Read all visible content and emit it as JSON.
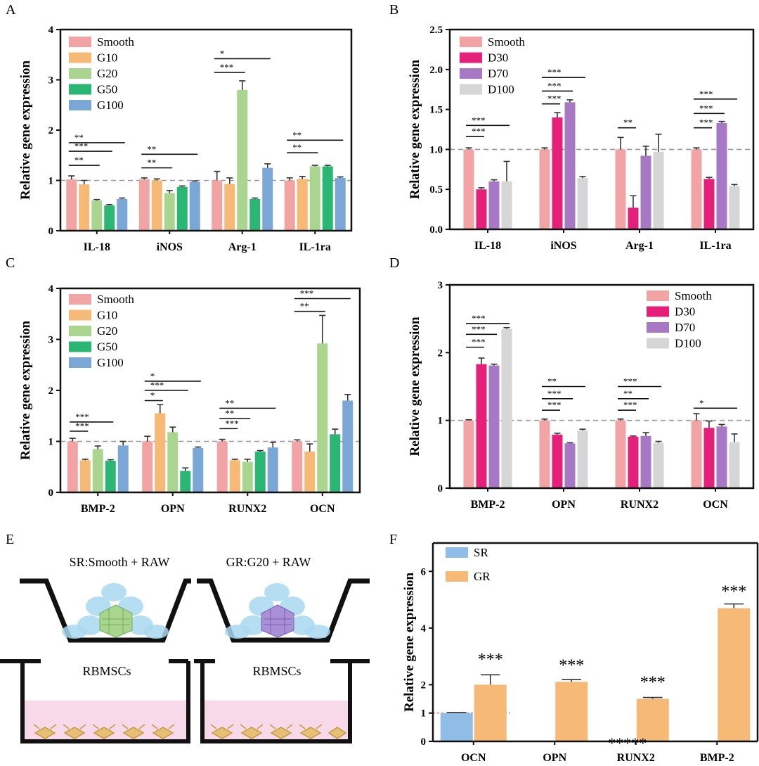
{
  "colors": {
    "smooth": "#f2a3a3",
    "g10": "#f7b976",
    "g20": "#a9d58f",
    "g50": "#2bb673",
    "g100": "#7ba7d6",
    "d30": "#e4207a",
    "d70": "#a778c3",
    "d100": "#d6d6d6",
    "sr": "#8fbde6",
    "gr": "#f7b976",
    "axis": "#111111",
    "refline": "#999999"
  },
  "schematic": {
    "panel_label": "E",
    "left_title": "SR:Smooth + RAW",
    "right_title": "GR:G20 + RAW",
    "left_cells_label": "RBMSCs",
    "right_cells_label": "RBMSCs"
  },
  "chart_data": [
    {
      "panel": "A",
      "type": "bar",
      "ylabel": "Relative gene expression",
      "ylim": [
        0,
        4
      ],
      "yticks": [
        "0",
        "1",
        "2",
        "3",
        "4"
      ],
      "reference_line": 1,
      "legend_position": "top-left",
      "categories": [
        "IL-18",
        "iNOS",
        "Arg-1",
        "IL-1ra"
      ],
      "series": [
        {
          "name": "Smooth",
          "color": "smooth",
          "values": [
            1.02,
            1.02,
            1.0,
            1.0
          ],
          "errors": [
            0.07,
            0.03,
            0.18,
            0.05
          ]
        },
        {
          "name": "G10",
          "color": "g10",
          "values": [
            0.92,
            1.0,
            0.93,
            1.03
          ],
          "errors": [
            0.08,
            0.03,
            0.12,
            0.05
          ]
        },
        {
          "name": "G20",
          "color": "g20",
          "values": [
            0.6,
            0.75,
            2.8,
            1.28
          ],
          "errors": [
            0.02,
            0.05,
            0.18,
            0.02
          ]
        },
        {
          "name": "G50",
          "color": "g50",
          "values": [
            0.5,
            0.87,
            0.63,
            1.28
          ],
          "errors": [
            0.02,
            0.02,
            0.02,
            0.02
          ]
        },
        {
          "name": "G100",
          "color": "g100",
          "values": [
            0.63,
            0.97,
            1.25,
            1.05
          ],
          "errors": [
            0.02,
            0.02,
            0.08,
            0.02
          ]
        }
      ],
      "significance": [
        {
          "cat": 0,
          "from": 0,
          "to": 2,
          "y": 1.3,
          "label": "**"
        },
        {
          "cat": 0,
          "from": 0,
          "to": 3,
          "y": 1.58,
          "label": "***"
        },
        {
          "cat": 0,
          "from": 0,
          "to": 4,
          "y": 1.75,
          "label": "**"
        },
        {
          "cat": 1,
          "from": 0,
          "to": 2,
          "y": 1.25,
          "label": "**"
        },
        {
          "cat": 1,
          "from": 0,
          "to": 4,
          "y": 1.52,
          "label": "**"
        },
        {
          "cat": 2,
          "from": 0,
          "to": 2,
          "y": 3.15,
          "label": "***"
        },
        {
          "cat": 2,
          "from": 0,
          "to": 4,
          "y": 3.42,
          "label": "*"
        },
        {
          "cat": 3,
          "from": 0,
          "to": 2,
          "y": 1.55,
          "label": "**"
        },
        {
          "cat": 3,
          "from": 0,
          "to": 4,
          "y": 1.8,
          "label": "**"
        }
      ]
    },
    {
      "panel": "B",
      "type": "bar",
      "ylabel": "Relative gene expression",
      "ylim": [
        0,
        2.5
      ],
      "yticks": [
        "0.0",
        "0.5",
        "1.0",
        "1.5",
        "2.0",
        "2.5"
      ],
      "reference_line": 1,
      "legend_position": "top-left",
      "categories": [
        "IL-18",
        "iNOS",
        "Arg-1",
        "IL-1ra"
      ],
      "series": [
        {
          "name": "Smooth",
          "color": "smooth",
          "values": [
            1.0,
            1.0,
            1.0,
            1.0
          ],
          "errors": [
            0.02,
            0.02,
            0.15,
            0.02
          ]
        },
        {
          "name": "D30",
          "color": "d30",
          "values": [
            0.5,
            1.4,
            0.27,
            0.63
          ],
          "errors": [
            0.02,
            0.06,
            0.15,
            0.02
          ]
        },
        {
          "name": "D70",
          "color": "d70",
          "values": [
            0.6,
            1.59,
            0.92,
            1.33
          ],
          "errors": [
            0.02,
            0.03,
            0.12,
            0.02
          ]
        },
        {
          "name": "D100",
          "color": "d100",
          "values": [
            0.6,
            0.64,
            0.97,
            0.54
          ],
          "errors": [
            0.25,
            0.02,
            0.22,
            0.02
          ]
        }
      ],
      "significance": [
        {
          "cat": 0,
          "from": 0,
          "to": 1,
          "y": 1.16,
          "label": "***"
        },
        {
          "cat": 0,
          "from": 0,
          "to": 3,
          "y": 1.3,
          "label": "***"
        },
        {
          "cat": 1,
          "from": 0,
          "to": 1,
          "y": 1.57,
          "label": "***"
        },
        {
          "cat": 1,
          "from": 0,
          "to": 2,
          "y": 1.73,
          "label": "***"
        },
        {
          "cat": 1,
          "from": 0,
          "to": 3,
          "y": 1.9,
          "label": "***"
        },
        {
          "cat": 2,
          "from": 0,
          "to": 1,
          "y": 1.27,
          "label": "**"
        },
        {
          "cat": 3,
          "from": 0,
          "to": 1,
          "y": 1.27,
          "label": "***"
        },
        {
          "cat": 3,
          "from": 0,
          "to": 2,
          "y": 1.45,
          "label": "***"
        },
        {
          "cat": 3,
          "from": 0,
          "to": 3,
          "y": 1.63,
          "label": "***"
        }
      ]
    },
    {
      "panel": "C",
      "type": "bar",
      "ylabel": "Relative gene expression",
      "ylim": [
        0,
        4
      ],
      "yticks": [
        "0",
        "1",
        "2",
        "3",
        "4"
      ],
      "reference_line": 1,
      "legend_position": "top-left",
      "categories": [
        "BMP-2",
        "OPN",
        "RUNX2",
        "OCN"
      ],
      "series": [
        {
          "name": "Smooth",
          "color": "smooth",
          "values": [
            1.0,
            1.0,
            1.0,
            1.0
          ],
          "errors": [
            0.06,
            0.1,
            0.04,
            0.03
          ]
        },
        {
          "name": "G10",
          "color": "g10",
          "values": [
            0.63,
            1.55,
            0.63,
            0.8
          ],
          "errors": [
            0.02,
            0.17,
            0.02,
            0.15
          ]
        },
        {
          "name": "G20",
          "color": "g20",
          "values": [
            0.85,
            1.18,
            0.6,
            2.92
          ],
          "errors": [
            0.06,
            0.1,
            0.05,
            0.55
          ]
        },
        {
          "name": "G50",
          "color": "g50",
          "values": [
            0.62,
            0.42,
            0.8,
            1.14
          ],
          "errors": [
            0.02,
            0.06,
            0.02,
            0.1
          ]
        },
        {
          "name": "G100",
          "color": "g100",
          "values": [
            0.92,
            0.87,
            0.88,
            1.8
          ],
          "errors": [
            0.08,
            0.02,
            0.1,
            0.12
          ]
        }
      ],
      "significance": [
        {
          "cat": 0,
          "from": 0,
          "to": 1,
          "y": 1.2,
          "label": "***"
        },
        {
          "cat": 0,
          "from": 0,
          "to": 3,
          "y": 1.38,
          "label": "***"
        },
        {
          "cat": 1,
          "from": 0,
          "to": 1,
          "y": 1.8,
          "label": "*"
        },
        {
          "cat": 1,
          "from": 0,
          "to": 3,
          "y": 2.0,
          "label": "***"
        },
        {
          "cat": 1,
          "from": 0,
          "to": 4,
          "y": 2.18,
          "label": "*"
        },
        {
          "cat": 2,
          "from": 0,
          "to": 1,
          "y": 1.25,
          "label": "***"
        },
        {
          "cat": 2,
          "from": 0,
          "to": 2,
          "y": 1.45,
          "label": "**"
        },
        {
          "cat": 2,
          "from": 0,
          "to": 4,
          "y": 1.65,
          "label": "**"
        },
        {
          "cat": 3,
          "from": 0,
          "to": 2,
          "y": 3.55,
          "label": "**"
        },
        {
          "cat": 3,
          "from": 0,
          "to": 4,
          "y": 3.8,
          "label": "***"
        }
      ]
    },
    {
      "panel": "D",
      "type": "bar",
      "ylabel": "Relative gene expression",
      "ylim": [
        0,
        3
      ],
      "yticks": [
        "0",
        "1",
        "2",
        "3"
      ],
      "reference_line": 1,
      "legend_position": "top-right",
      "categories": [
        "BMP-2",
        "OPN",
        "RUNX2",
        "OCN"
      ],
      "series": [
        {
          "name": "Smooth",
          "color": "smooth",
          "values": [
            1.0,
            1.0,
            1.0,
            1.0
          ],
          "errors": [
            0.01,
            0.02,
            0.02,
            0.1
          ]
        },
        {
          "name": "D30",
          "color": "d30",
          "values": [
            1.83,
            0.79,
            0.76,
            0.89
          ],
          "errors": [
            0.09,
            0.02,
            0.01,
            0.1
          ]
        },
        {
          "name": "D70",
          "color": "d70",
          "values": [
            1.81,
            0.66,
            0.77,
            0.91
          ],
          "errors": [
            0.02,
            0.01,
            0.05,
            0.03
          ]
        },
        {
          "name": "D100",
          "color": "d100",
          "values": [
            2.35,
            0.85,
            0.67,
            0.68
          ],
          "errors": [
            0.02,
            0.02,
            0.02,
            0.12
          ]
        }
      ],
      "significance": [
        {
          "cat": 0,
          "from": 0,
          "to": 1,
          "y": 2.08,
          "label": "***"
        },
        {
          "cat": 0,
          "from": 0,
          "to": 2,
          "y": 2.27,
          "label": "***"
        },
        {
          "cat": 0,
          "from": 0,
          "to": 3,
          "y": 2.43,
          "label": "***"
        },
        {
          "cat": 1,
          "from": 0,
          "to": 1,
          "y": 1.15,
          "label": "***"
        },
        {
          "cat": 1,
          "from": 0,
          "to": 2,
          "y": 1.32,
          "label": "***"
        },
        {
          "cat": 1,
          "from": 0,
          "to": 3,
          "y": 1.5,
          "label": "**"
        },
        {
          "cat": 2,
          "from": 0,
          "to": 1,
          "y": 1.15,
          "label": "***"
        },
        {
          "cat": 2,
          "from": 0,
          "to": 2,
          "y": 1.32,
          "label": "**"
        },
        {
          "cat": 2,
          "from": 0,
          "to": 3,
          "y": 1.5,
          "label": "***"
        },
        {
          "cat": 3,
          "from": 0,
          "to": 3,
          "y": 1.18,
          "label": "*"
        }
      ]
    },
    {
      "panel": "F",
      "type": "bar",
      "ylabel": "Relative gene expression",
      "ylim": [
        0,
        7
      ],
      "yticks": [
        "0",
        "1",
        "2",
        "4",
        "6"
      ],
      "ytick_values": [
        0,
        1,
        2,
        4,
        6
      ],
      "reference_line": 1,
      "legend_position": "top-left",
      "categories": [
        "OCN",
        "OPN",
        "RUNX2",
        "BMP-2"
      ],
      "series": [
        {
          "name": "SR",
          "color": "sr",
          "values": [
            1.0,
            0,
            0,
            0
          ],
          "errors": [
            0.02,
            0,
            0,
            0
          ]
        },
        {
          "name": "GR",
          "color": "gr",
          "values": [
            2.0,
            2.1,
            1.5,
            4.7
          ],
          "errors": [
            0.35,
            0.08,
            0.05,
            0.15
          ]
        }
      ],
      "annotations": [
        {
          "cat": 0,
          "text": "***",
          "y": 2.7
        },
        {
          "cat": 1,
          "text": "***",
          "y": 2.5
        },
        {
          "cat": 2,
          "text": "***",
          "y": 1.9
        },
        {
          "cat": 3,
          "text": "***",
          "y": 5.1
        }
      ],
      "extra_text": "*****"
    }
  ]
}
